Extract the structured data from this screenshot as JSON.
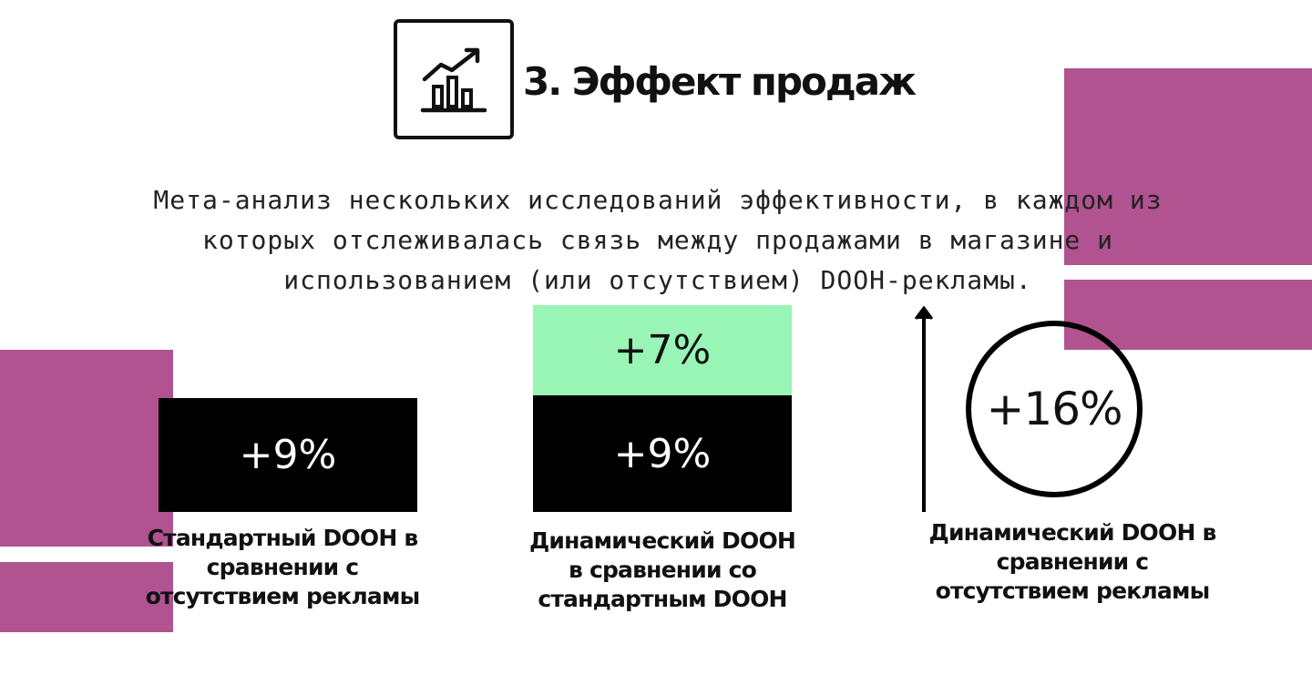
{
  "colors": {
    "decor": "#b05390",
    "highlight": "#98f5b6",
    "dark": "#000000"
  },
  "header": {
    "icon": "bar-chart-trend-up-icon",
    "title": "3. Эффект продаж"
  },
  "description": "Мета-анализ нескольких исследований эффективности, в каждом из которых отслеживалась связь между продажами в магазине и использованием (или отсутствием) DOOH-рекламы.",
  "metrics": [
    {
      "value": "+9%",
      "label": "Стандартный DOOH в сравнении с отсутствием рекламы"
    },
    {
      "value_top": "+7%",
      "value_bottom": "+9%",
      "label": "Динамический DOOH в сравнении со стандартным DOOH"
    },
    {
      "value": "+16%",
      "label": "Динамический DOOH в сравнении с отсутствием рекламы"
    }
  ]
}
